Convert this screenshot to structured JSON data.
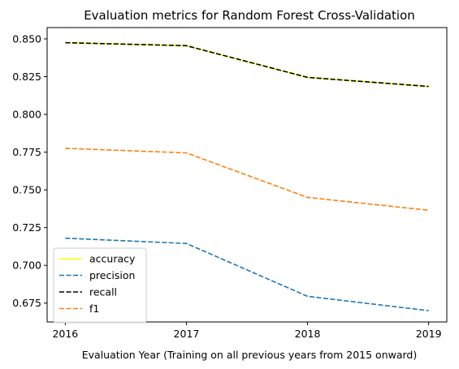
{
  "chart_data": {
    "type": "line",
    "title": "Evaluation metrics for Random Forest Cross-Validation",
    "xlabel": "Evaluation Year (Training on all previous years from 2015 onward)",
    "ylabel": "",
    "x": [
      2016,
      2017,
      2018,
      2019
    ],
    "x_tick_labels": [
      "2016",
      "2017",
      "2018",
      "2019"
    ],
    "xlim": [
      2015.85,
      2019.15
    ],
    "ylim": [
      0.6625,
      0.8575
    ],
    "y_ticks": [
      0.675,
      0.7,
      0.725,
      0.75,
      0.775,
      0.8,
      0.825,
      0.85
    ],
    "y_tick_labels": [
      "0.675",
      "0.700",
      "0.725",
      "0.750",
      "0.775",
      "0.800",
      "0.825",
      "0.850"
    ],
    "grid": false,
    "legend_position": "lower-left",
    "series": [
      {
        "name": "accuracy",
        "values": [
          0.8475,
          0.8455,
          0.8245,
          0.8185
        ],
        "color": "#ffff00",
        "dash": "solid"
      },
      {
        "name": "precision",
        "values": [
          0.718,
          0.7145,
          0.6795,
          0.67
        ],
        "color": "#1f77b4",
        "dash": "dashed"
      },
      {
        "name": "recall",
        "values": [
          0.8475,
          0.8455,
          0.8245,
          0.8185
        ],
        "color": "#000000",
        "dash": "dashed"
      },
      {
        "name": "f1",
        "values": [
          0.7775,
          0.7745,
          0.745,
          0.7365
        ],
        "color": "#ff7f0e",
        "dash": "dashed"
      }
    ]
  }
}
